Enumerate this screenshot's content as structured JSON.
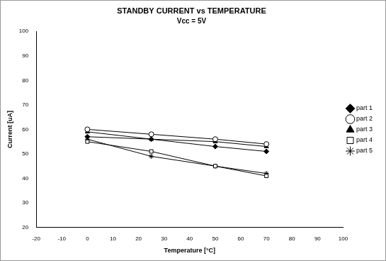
{
  "chart_data": {
    "type": "line",
    "title": "STANDBY CURRENT vs TEMPERATURE",
    "subtitle": "Vcc = 5V",
    "x_label": "Temperature [°C]",
    "y_label": "Current [uA]",
    "x": [
      0,
      25,
      50,
      70
    ],
    "series": [
      {
        "name": "part 1",
        "color": "#000000",
        "marker": "diamond",
        "values": [
          57,
          56,
          53,
          51
        ]
      },
      {
        "name": "part 2",
        "color": "#000000",
        "marker": "open-circle",
        "values": [
          60,
          58,
          56,
          54
        ]
      },
      {
        "name": "part 3",
        "color": "#000000",
        "marker": "triangle",
        "values": [
          59,
          56,
          55,
          53
        ]
      },
      {
        "name": "part 4",
        "color": "#000000",
        "marker": "open-square",
        "values": [
          55,
          51,
          45,
          41
        ]
      },
      {
        "name": "part 5",
        "color": "#000000",
        "marker": "star",
        "values": [
          56,
          49,
          45,
          42
        ]
      }
    ],
    "xlim": [
      -20,
      100
    ],
    "xticks": [
      -20,
      -10,
      0,
      10,
      20,
      30,
      40,
      50,
      60,
      70,
      80,
      90,
      100
    ],
    "ylim": [
      20,
      100
    ],
    "yticks": [
      20,
      30,
      40,
      50,
      60,
      70,
      80,
      90,
      100
    ],
    "grid": false,
    "legend": "right"
  }
}
